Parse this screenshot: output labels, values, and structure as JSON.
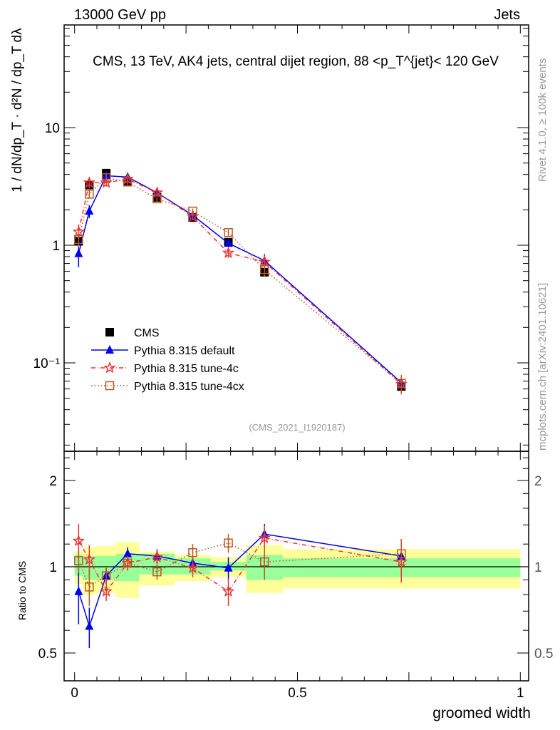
{
  "header": {
    "left": "13000 GeV pp",
    "right": "Jets"
  },
  "side_texts": {
    "rivet": "Rivet 4.1.0, ≥ 100k events",
    "mcplots": "mcplots.cern.ch [arXiv:2401.10621]"
  },
  "analysis_id": "(CMS_2021_I1920187)",
  "colors": {
    "cms": "#000000",
    "default": "#0000ee",
    "tune4c": "#ee3333",
    "tune4cx": "#bb5522",
    "band_inner": "#99ff99",
    "band_outer": "#ffff99"
  },
  "chart_data": [
    {
      "type": "scatter",
      "title": "CMS, 13 TeV, AK4 jets, central dijet region, 88 <p_T^{jet}< 120 GeV",
      "xlabel": "groomed width",
      "ylabel": "1 / dN/dp_T · d²N / dp_T dλ",
      "yscale": "log",
      "xlim": [
        0,
        1
      ],
      "ylim": [
        0.018,
        76
      ],
      "yticks": [
        {
          "v": 0.1,
          "label": "10⁻¹"
        },
        {
          "v": 1,
          "label": "1"
        },
        {
          "v": 10,
          "label": "10"
        }
      ],
      "x": [
        0.009,
        0.033,
        0.071,
        0.119,
        0.185,
        0.265,
        0.345,
        0.426,
        0.733
      ],
      "bin_edges": [
        0,
        0.018,
        0.049,
        0.093,
        0.145,
        0.225,
        0.305,
        0.385,
        0.467,
        1.0
      ],
      "legend_position": "bottom-left",
      "series": [
        {
          "name": "CMS",
          "key": "cms",
          "values": [
            1.08,
            3.25,
            4.1,
            3.5,
            2.55,
            1.72,
            1.06,
            0.59,
            0.063
          ]
        },
        {
          "name": "Pythia 8.315 default",
          "key": "default",
          "values": [
            0.85,
            1.95,
            3.9,
            3.8,
            2.8,
            1.8,
            1.04,
            0.74,
            0.068
          ],
          "err": [
            0.2,
            0.25,
            0.25,
            0.25,
            0.15,
            0.1,
            0.06,
            0.1,
            0.01
          ]
        },
        {
          "name": "Pythia 8.315 tune-4c",
          "key": "tune4c",
          "values": [
            1.3,
            3.4,
            3.4,
            3.65,
            2.8,
            1.75,
            0.86,
            0.72,
            0.066
          ],
          "err": [
            0.2,
            0.35,
            0.25,
            0.25,
            0.2,
            0.12,
            0.08,
            0.1,
            0.012
          ]
        },
        {
          "name": "Pythia 8.315 tune-4cx",
          "key": "tune4cx",
          "values": [
            1.12,
            2.72,
            3.75,
            3.45,
            2.48,
            1.95,
            1.28,
            0.62,
            0.067
          ],
          "err": [
            0.15,
            0.2,
            0.25,
            0.2,
            0.15,
            0.1,
            0.08,
            0.08,
            0.012
          ]
        }
      ]
    },
    {
      "type": "scatter",
      "ylabel": "Ratio to CMS",
      "xlabel": "groomed width",
      "yscale": "log",
      "ylim": [
        0.4,
        2.5
      ],
      "yticks": [
        {
          "v": 0.5,
          "label": "0.5"
        },
        {
          "v": 1,
          "label": "1"
        },
        {
          "v": 2,
          "label": "2"
        }
      ],
      "xticks": [
        {
          "v": 0,
          "label": "0"
        },
        {
          "v": 0.5,
          "label": "0.5"
        },
        {
          "v": 1,
          "label": "1"
        }
      ],
      "band_inner": [
        [
          0.93,
          1.1
        ],
        [
          0.9,
          1.09
        ],
        [
          0.9,
          1.09
        ],
        [
          0.89,
          1.11
        ],
        [
          0.94,
          1.11
        ],
        [
          0.94,
          1.07
        ],
        [
          0.97,
          1.04
        ],
        [
          0.9,
          1.1
        ],
        [
          0.92,
          1.07
        ]
      ],
      "band_outer": [
        [
          0.87,
          1.13
        ],
        [
          0.8,
          1.17
        ],
        [
          0.81,
          1.18
        ],
        [
          0.78,
          1.22
        ],
        [
          0.86,
          1.13
        ],
        [
          0.89,
          1.1
        ],
        [
          0.92,
          1.08
        ],
        [
          0.81,
          1.19
        ],
        [
          0.84,
          1.15
        ]
      ],
      "series": [
        {
          "name": "Pythia 8.315 default",
          "key": "default",
          "values": [
            0.82,
            0.62,
            0.93,
            1.11,
            1.09,
            1.03,
            0.99,
            1.3,
            1.09
          ],
          "err": [
            0.19,
            0.1,
            0.06,
            0.06,
            0.06,
            0.06,
            0.09,
            0.11,
            0.15
          ]
        },
        {
          "name": "Pythia 8.315 tune-4c",
          "key": "tune4c",
          "values": [
            1.23,
            1.06,
            0.82,
            1.03,
            1.08,
            0.99,
            0.82,
            1.26,
            1.04
          ],
          "err": [
            0.18,
            0.13,
            0.06,
            0.06,
            0.06,
            0.07,
            0.09,
            0.13,
            0.16
          ]
        },
        {
          "name": "Pythia 8.315 tune-4cx",
          "key": "tune4cx",
          "values": [
            1.05,
            0.85,
            0.93,
            1.03,
            0.96,
            1.12,
            1.21,
            1.04,
            1.11
          ],
          "err": [
            0.1,
            0.12,
            0.06,
            0.06,
            0.06,
            0.08,
            0.09,
            0.14,
            0.14
          ]
        }
      ]
    }
  ]
}
